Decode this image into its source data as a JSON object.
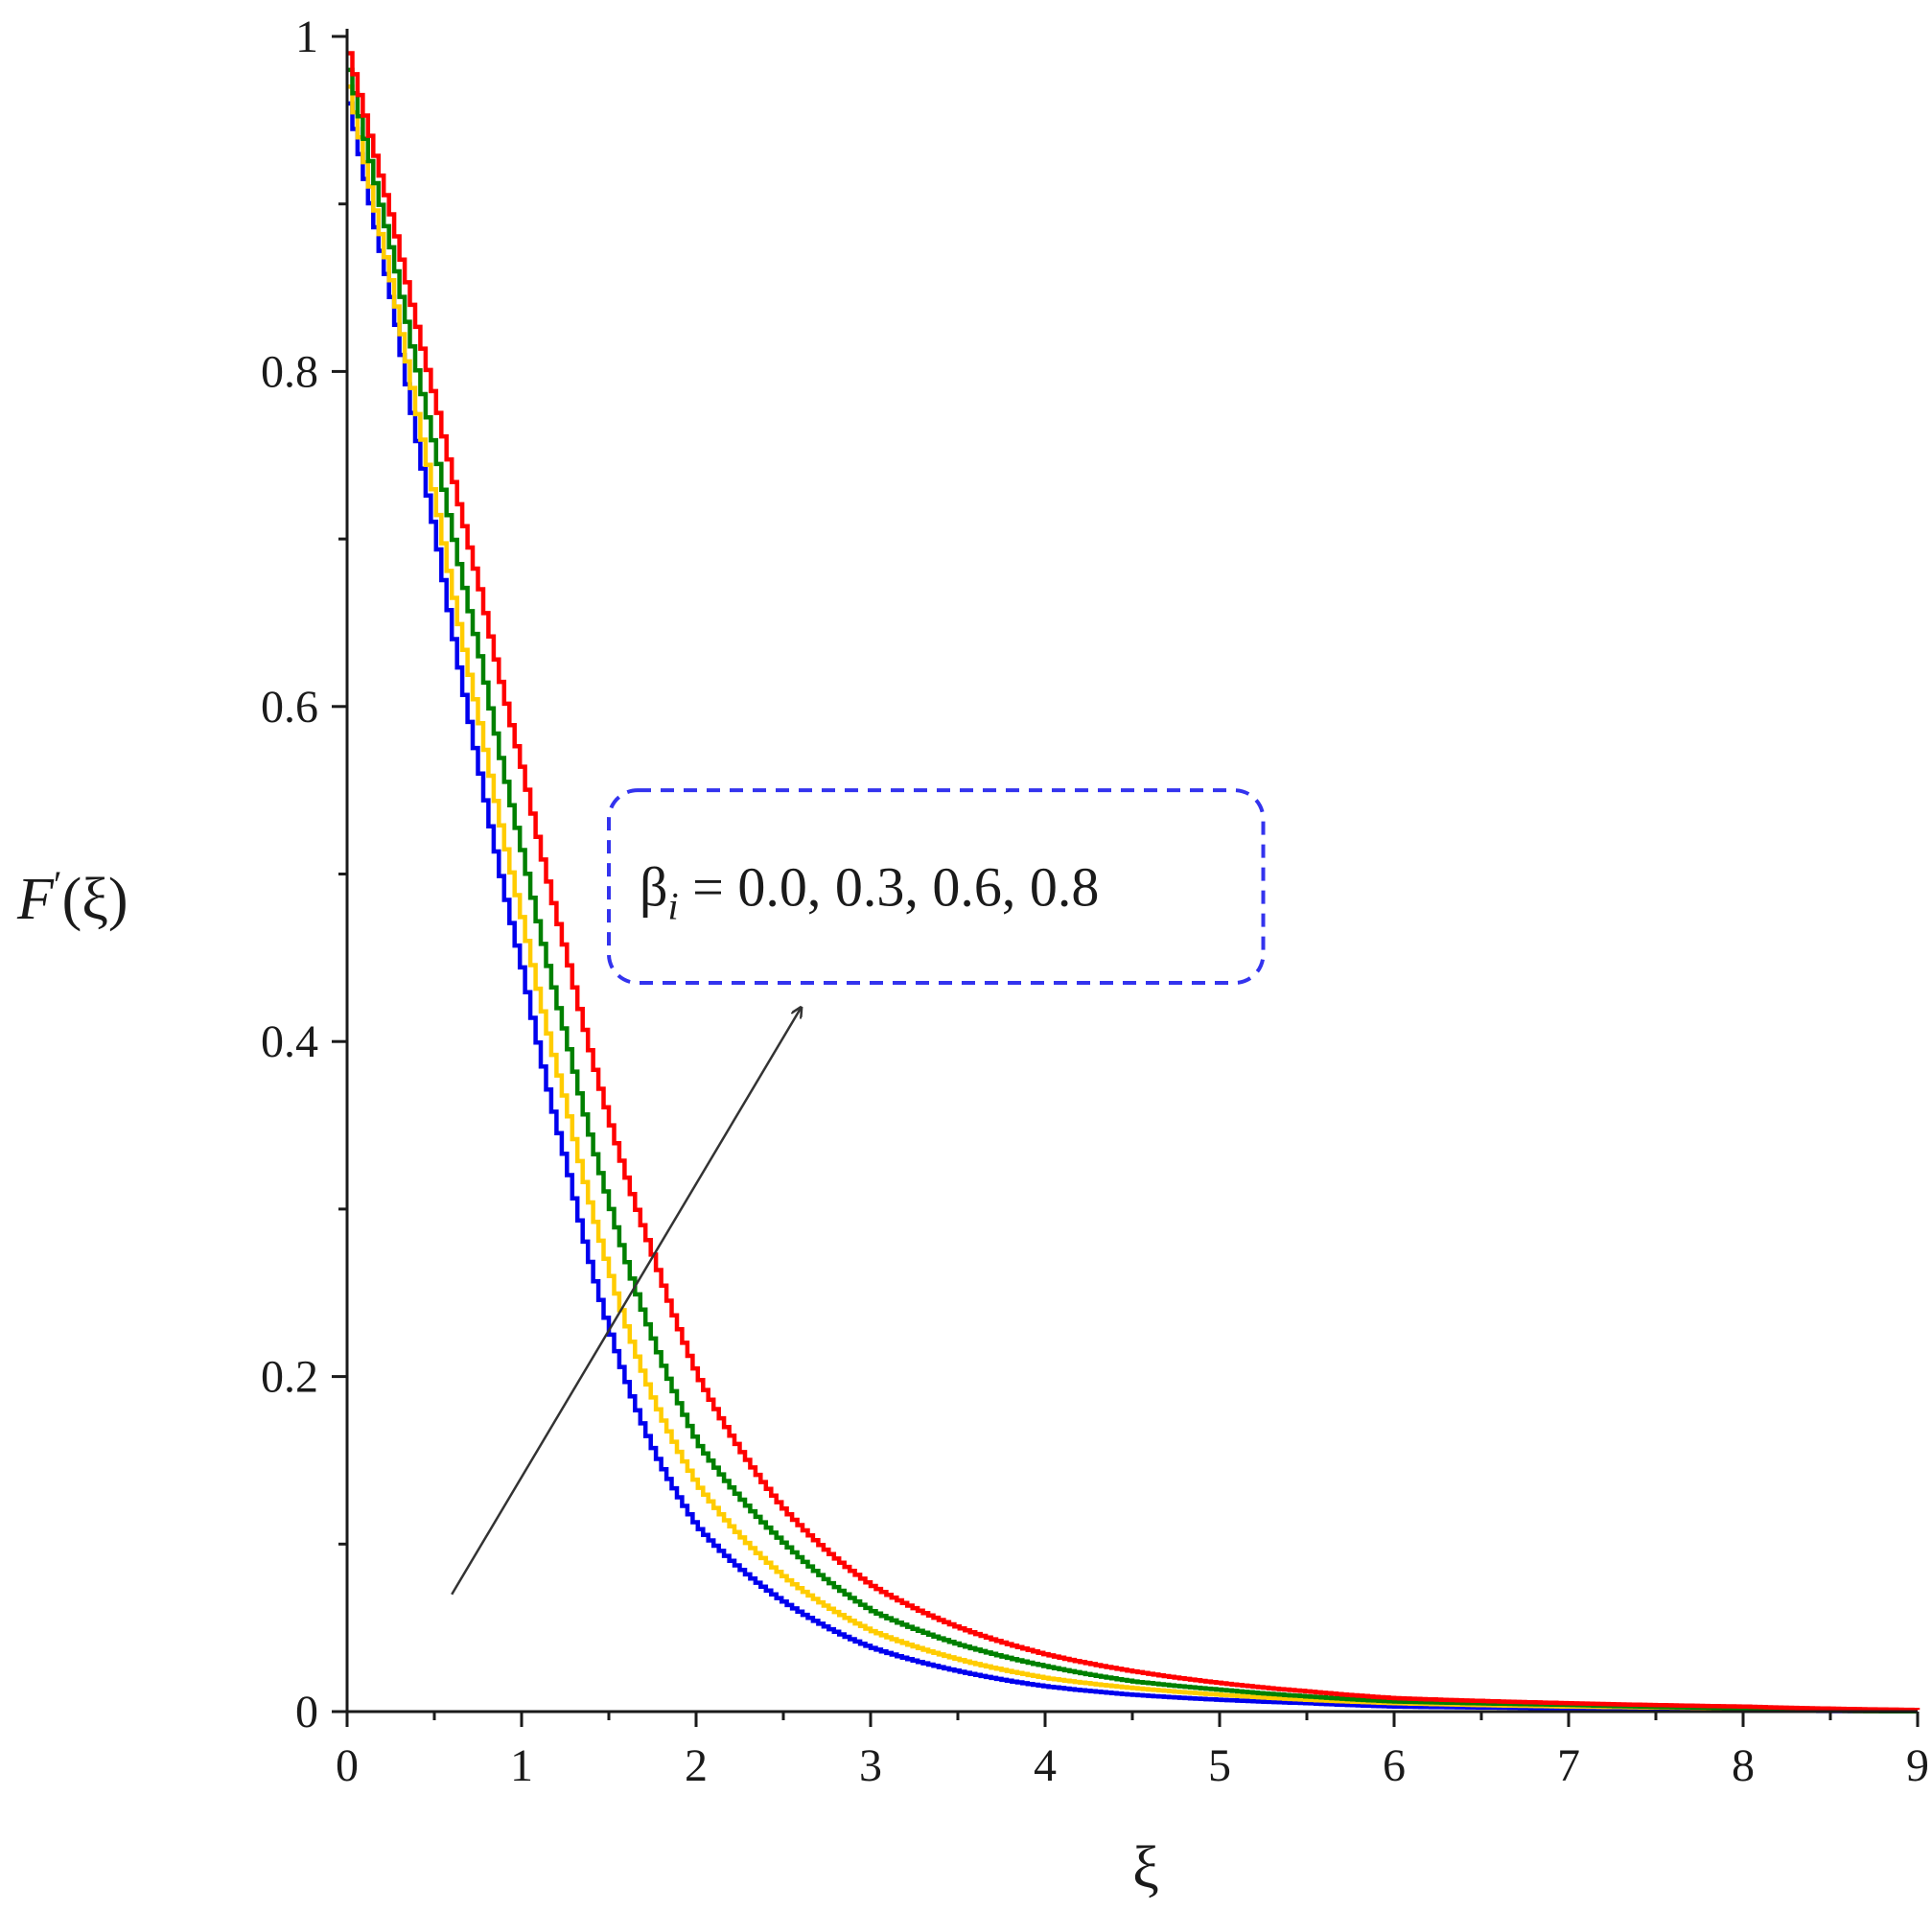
{
  "chart_data": {
    "type": "line",
    "xlabel": "ξ",
    "ylabel": "F′(ξ)",
    "ylabel_func": "F",
    "ylabel_prime": "′",
    "ylabel_arg": "(ξ)",
    "xlim": [
      0,
      9
    ],
    "ylim": [
      0,
      1
    ],
    "x_ticks": [
      "0",
      "1",
      "2",
      "3",
      "4",
      "5",
      "6",
      "7",
      "8",
      "9"
    ],
    "y_ticks": [
      "0",
      "0.2",
      "0.4",
      "0.6",
      "0.8",
      "1"
    ],
    "grid": false,
    "annotation": {
      "symbol": "β",
      "subscript": "i",
      "rest": " = 0.0, 0.3, 0.6, 0.8",
      "arrow_from": [
        0.6,
        0.07
      ],
      "arrow_to": [
        2.6,
        0.42
      ],
      "box_x": [
        1.5,
        5.25
      ],
      "box_y": [
        0.435,
        0.55
      ]
    },
    "x": [
      0,
      0.25,
      0.5,
      0.75,
      1,
      1.25,
      1.5,
      1.75,
      2,
      2.5,
      3,
      3.5,
      4,
      4.5,
      5,
      5.5,
      6,
      7,
      8,
      9
    ],
    "series": [
      {
        "color": "#0000ee",
        "values": [
          0.96,
          0.84,
          0.7,
          0.56,
          0.44,
          0.325,
          0.225,
          0.155,
          0.11,
          0.065,
          0.038,
          0.024,
          0.015,
          0.01,
          0.007,
          0.005,
          0.003,
          0.002,
          0.001,
          0.0
        ]
      },
      {
        "color": "#ffcc00",
        "values": [
          0.97,
          0.85,
          0.72,
          0.59,
          0.47,
          0.36,
          0.26,
          0.185,
          0.135,
          0.08,
          0.048,
          0.031,
          0.02,
          0.014,
          0.01,
          0.007,
          0.005,
          0.003,
          0.002,
          0.0
        ]
      },
      {
        "color": "#008000",
        "values": [
          0.98,
          0.87,
          0.75,
          0.63,
          0.51,
          0.4,
          0.3,
          0.22,
          0.16,
          0.1,
          0.06,
          0.04,
          0.027,
          0.018,
          0.013,
          0.009,
          0.006,
          0.004,
          0.002,
          0.0
        ]
      },
      {
        "color": "#ff0000",
        "values": [
          0.99,
          0.89,
          0.78,
          0.67,
          0.56,
          0.45,
          0.35,
          0.27,
          0.2,
          0.12,
          0.075,
          0.05,
          0.034,
          0.024,
          0.017,
          0.012,
          0.008,
          0.005,
          0.003,
          0.001
        ]
      }
    ]
  }
}
